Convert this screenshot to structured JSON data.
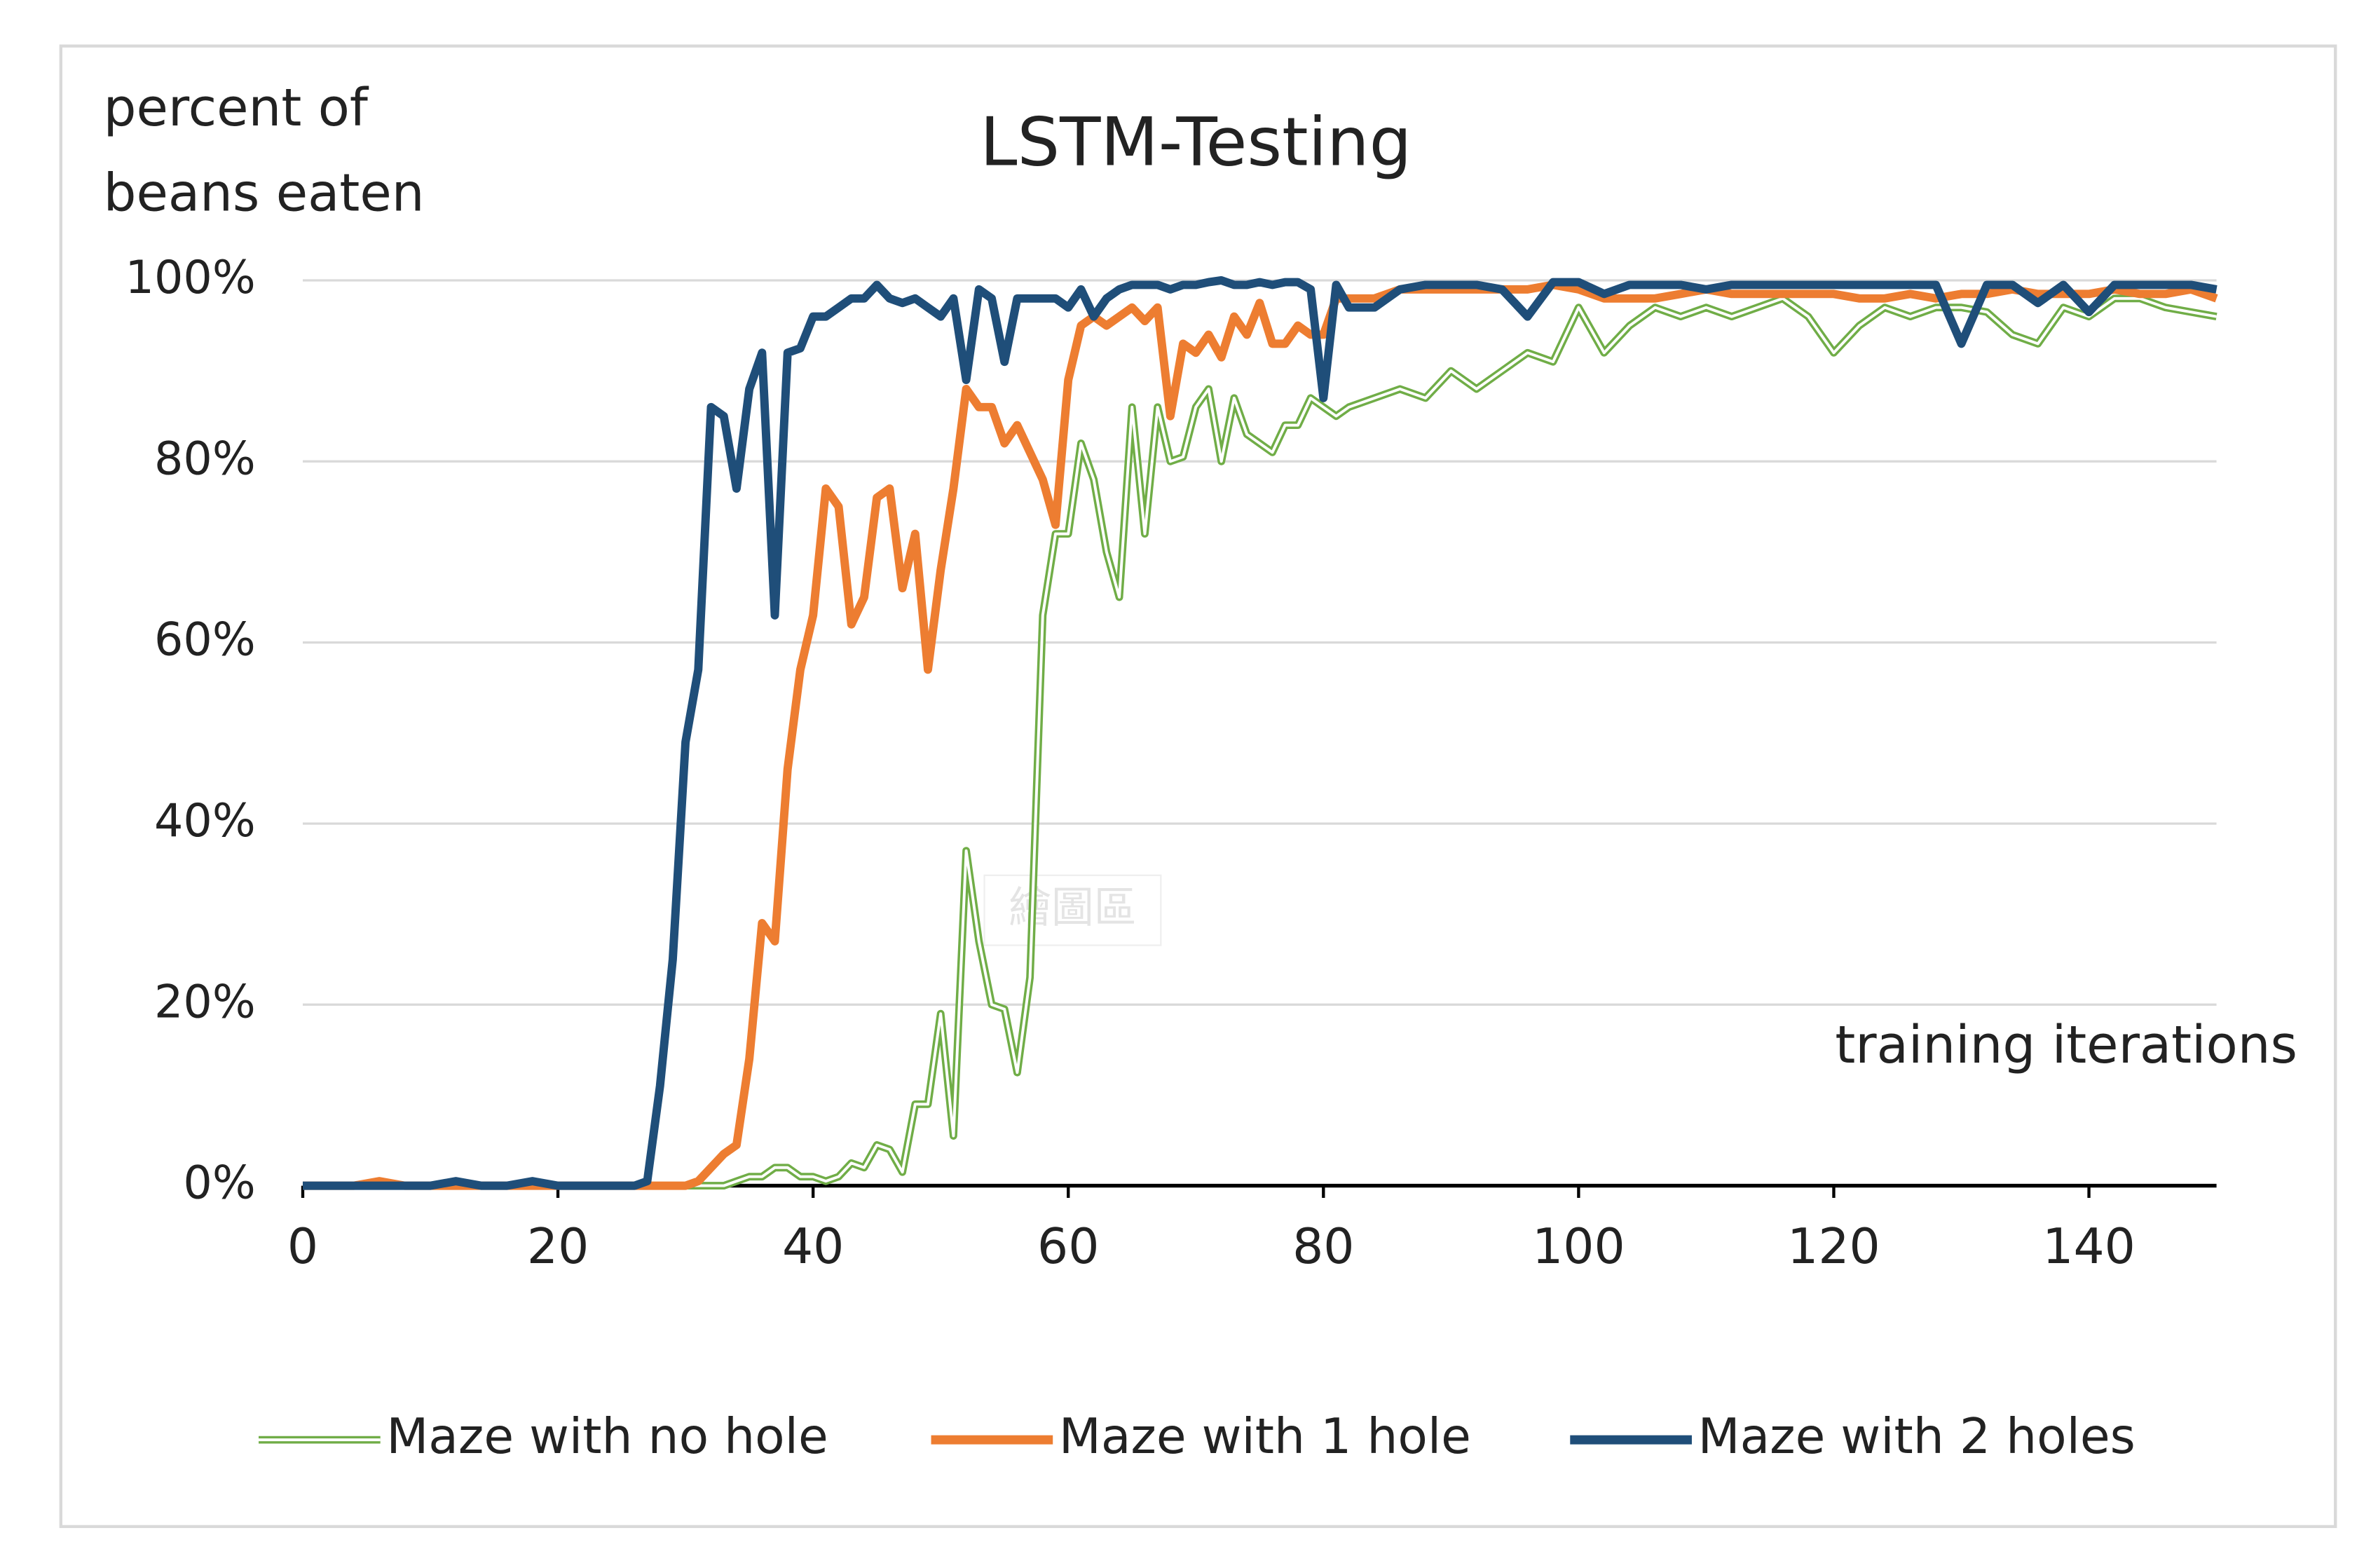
{
  "chart_data": {
    "type": "line",
    "title": "LSTM-Testing",
    "ylabel": [
      "percent of",
      "beans eaten"
    ],
    "xlabel": "training iterations",
    "watermark": "繪圖區",
    "xlim": [
      0,
      150
    ],
    "xticks": [
      0,
      20,
      40,
      60,
      80,
      100,
      120,
      140
    ],
    "ylim": [
      0,
      100
    ],
    "yticks": [
      {
        "value": 0,
        "label": "0%"
      },
      {
        "value": 20,
        "label": "20%"
      },
      {
        "value": 40,
        "label": "40%"
      },
      {
        "value": 60,
        "label": "60%"
      },
      {
        "value": 80,
        "label": "80%"
      },
      {
        "value": 100,
        "label": "100%"
      }
    ],
    "grid": true,
    "legend": "bottom",
    "x": [
      0,
      2,
      4,
      6,
      8,
      10,
      12,
      14,
      16,
      18,
      20,
      22,
      24,
      26,
      27,
      28,
      29,
      30,
      31,
      32,
      33,
      34,
      35,
      36,
      37,
      38,
      39,
      40,
      41,
      42,
      43,
      44,
      45,
      46,
      47,
      48,
      49,
      50,
      51,
      52,
      53,
      54,
      55,
      56,
      57,
      58,
      59,
      60,
      61,
      62,
      63,
      64,
      65,
      66,
      67,
      68,
      69,
      70,
      71,
      72,
      73,
      74,
      75,
      76,
      77,
      78,
      79,
      80,
      81,
      82,
      84,
      86,
      88,
      90,
      92,
      94,
      96,
      98,
      100,
      102,
      104,
      106,
      108,
      110,
      112,
      114,
      116,
      118,
      120,
      122,
      124,
      126,
      128,
      130,
      132,
      134,
      136,
      138,
      140,
      142,
      144,
      146,
      148,
      150
    ],
    "series": [
      {
        "name": "Maze with no hole",
        "color": "#70ad47",
        "style": "double",
        "values": [
          0,
          0,
          0,
          0,
          0,
          0,
          0,
          0,
          0,
          0,
          0,
          0,
          0,
          0,
          0,
          0,
          0,
          0,
          0,
          0,
          0,
          0.5,
          1,
          1,
          2,
          2,
          1,
          1,
          0.5,
          1,
          2.5,
          2,
          4.5,
          4,
          1.5,
          9,
          9,
          19,
          5.5,
          37,
          27,
          20,
          19.5,
          12.5,
          23,
          63,
          72,
          72,
          82,
          78,
          70,
          65,
          86,
          72,
          86,
          80,
          80.5,
          86,
          88,
          80,
          87,
          83,
          82,
          81,
          84,
          84,
          87,
          86,
          85,
          86,
          87,
          88,
          87,
          90,
          88,
          90,
          92,
          91,
          97,
          92,
          95,
          97,
          96,
          97,
          96,
          97,
          98,
          96,
          92,
          95,
          97,
          96,
          97,
          97,
          96.5,
          94,
          93,
          97,
          96,
          98,
          98,
          97,
          96.5,
          96
        ]
      },
      {
        "name": "Maze with 1 hole",
        "color": "#ed7d31",
        "style": "solid",
        "values": [
          0,
          0,
          0,
          0.5,
          0,
          0,
          0,
          0,
          0,
          0,
          0,
          0,
          0,
          0,
          0,
          0,
          0,
          0,
          0.5,
          2,
          3.5,
          4.5,
          14,
          29,
          27,
          46,
          57,
          63,
          77,
          75,
          62,
          65,
          76,
          77,
          66,
          72,
          57,
          68,
          77,
          88,
          86,
          86,
          82,
          84,
          81,
          78,
          73,
          89,
          95,
          96,
          95,
          96,
          97,
          95.5,
          97,
          85,
          93,
          92,
          94,
          91.5,
          96,
          94,
          97.5,
          93,
          93,
          95,
          94,
          94,
          98,
          98,
          98,
          99,
          99,
          99,
          99,
          99,
          99,
          99.5,
          99,
          98,
          98,
          98,
          98.5,
          99,
          98.5,
          98.5,
          98.5,
          98.5,
          98.5,
          98,
          98,
          98.5,
          98,
          98.5,
          98.5,
          99,
          98.5,
          98.5,
          98.5,
          99,
          98.5,
          98.5,
          99,
          98
        ]
      },
      {
        "name": "Maze with 2 holes",
        "color": "#1f4e79",
        "style": "solid",
        "values": [
          0,
          0,
          0,
          0,
          0,
          0,
          0.5,
          0,
          0,
          0.5,
          0,
          0,
          0,
          0,
          0.5,
          11,
          25,
          49,
          57,
          86,
          85,
          77,
          88,
          92,
          63,
          92,
          92.5,
          96,
          96,
          97,
          98,
          98,
          99.5,
          98,
          97.5,
          98,
          97,
          96,
          98,
          89,
          99,
          98,
          91,
          98,
          98,
          98,
          98,
          97,
          99,
          96,
          98,
          99,
          99.5,
          99.5,
          99.5,
          99,
          99.5,
          99.5,
          99.8,
          100,
          99.5,
          99.5,
          99.8,
          99.5,
          99.8,
          99.8,
          99,
          87,
          99.5,
          97,
          97,
          99,
          99.5,
          99.5,
          99.5,
          99,
          96,
          99.8,
          99.8,
          98.5,
          99.5,
          99.5,
          99.5,
          99,
          99.5,
          99.5,
          99.5,
          99.5,
          99.5,
          99.5,
          99.5,
          99.5,
          99.5,
          93,
          99.5,
          99.5,
          97.5,
          99.5,
          96.5,
          99.5,
          99.5,
          99.5,
          99.5,
          99
        ]
      }
    ]
  }
}
